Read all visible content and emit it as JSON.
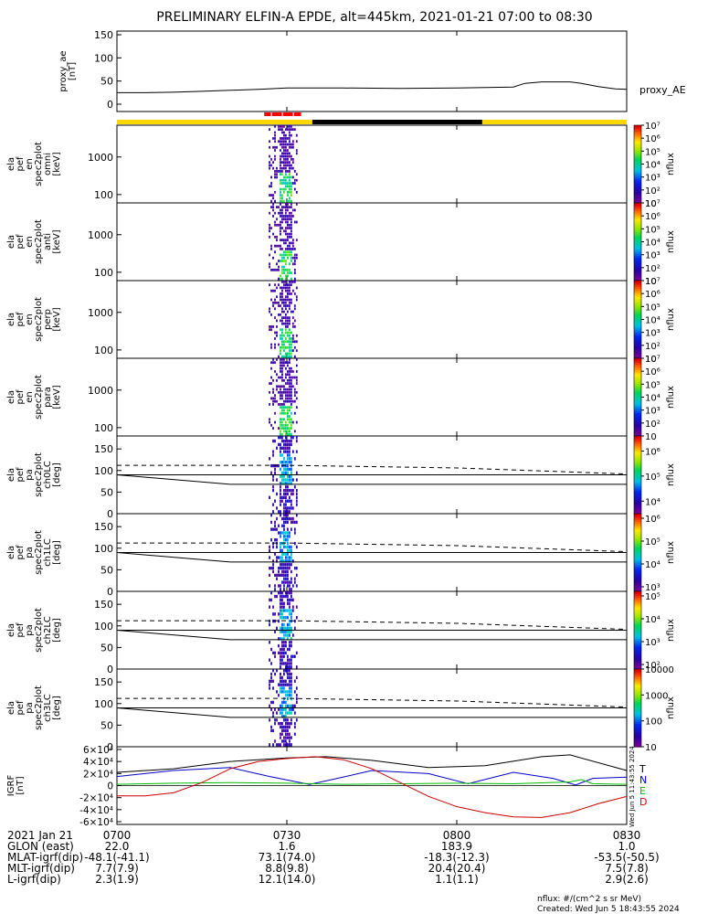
{
  "title": "PRELIMINARY ELFIN-A EPDE, alt=445km, 2021-01-21 07:00 to 08:30",
  "footer": {
    "units": "nflux: #/(cm^2 s sr MeV)",
    "created": "Created: Wed Jun  5 18:43:55 2024",
    "side_stamp": "Wed Jun  5 11:43:55 2024"
  },
  "time_axis": {
    "ticks": [
      "0700",
      "0730",
      "0800",
      "0830"
    ],
    "start": "07:00",
    "end": "08:30"
  },
  "ephemeris": {
    "rows": [
      {
        "label": "2021 Jan 21",
        "values": [
          "0700",
          "0730",
          "0800",
          "0830"
        ]
      },
      {
        "label": "GLON (east)",
        "values": [
          "22.0",
          "1.6",
          "183.9",
          "1.0"
        ]
      },
      {
        "label": "MLAT-igrf(dip)",
        "values": [
          "-48.1(-41.1)",
          "73.1(74.0)",
          "-18.3(-12.3)",
          "-53.5(-50.5)"
        ]
      },
      {
        "label": "MLT-igrf(dip)",
        "values": [
          "7.7(7.9)",
          "8.8(9.8)",
          "20.4(20.4)",
          "7.5(7.8)"
        ]
      },
      {
        "label": "L-igrf(dip)",
        "values": [
          "2.3(1.9)",
          "12.1(14.0)",
          "1.1(1.1)",
          "2.9(2.6)"
        ]
      }
    ]
  },
  "chart_data": [
    {
      "type": "line",
      "name": "proxy_ae",
      "ylabel": [
        "proxy_ae",
        "[nT]"
      ],
      "ylim": [
        0,
        150
      ],
      "yticks": [
        0,
        50,
        100,
        150
      ],
      "legend": "proxy_AE",
      "x": [
        0,
        5,
        10,
        15,
        20,
        25,
        30,
        40,
        50,
        60,
        65,
        70,
        72,
        75,
        80,
        82,
        85,
        88,
        90
      ],
      "y": [
        25,
        25,
        26,
        28,
        30,
        32,
        35,
        35,
        34,
        35,
        36,
        37,
        45,
        48,
        48,
        45,
        38,
        33,
        32
      ]
    },
    {
      "type": "table",
      "name": "status_bar",
      "segments": [
        {
          "start": 0,
          "end": 34.5,
          "color": "#ffd700"
        },
        {
          "start": 34.5,
          "end": 64.5,
          "color": "#000000"
        },
        {
          "start": 64.5,
          "end": 90,
          "color": "#ffd700"
        }
      ],
      "science_zone": [
        26,
        32.5
      ],
      "science_color": "#ff0000"
    },
    {
      "type": "heatmap",
      "name": "ela_pef_en_spec2plot_omni",
      "ylabel": [
        "ela",
        "pef",
        "en",
        "spec2plot",
        "omni",
        "[keV]"
      ],
      "ylog": true,
      "yrange": [
        60,
        7000
      ],
      "yticks": [
        "100",
        "1000"
      ],
      "cbar": {
        "label": "nflux",
        "log": true,
        "min_exp": 1,
        "max_exp": 7,
        "ticks": [
          "10",
          "10²",
          "10³",
          "10⁴",
          "10⁵",
          "10⁶",
          "10⁷"
        ]
      }
    },
    {
      "type": "heatmap",
      "name": "ela_pef_en_spec2plot_anti",
      "ylabel": [
        "ela",
        "pef",
        "en",
        "spec2plot",
        "anti",
        "[keV]"
      ],
      "ylog": true,
      "yrange": [
        60,
        7000
      ],
      "yticks": [
        "100",
        "1000"
      ],
      "cbar": {
        "label": "nflux",
        "log": true,
        "min_exp": 1,
        "max_exp": 7,
        "ticks": [
          "10",
          "10²",
          "10³",
          "10⁴",
          "10⁵",
          "10⁶",
          "10⁷"
        ]
      }
    },
    {
      "type": "heatmap",
      "name": "ela_pef_en_spec2plot_perp",
      "ylabel": [
        "ela",
        "pef",
        "en",
        "spec2plot",
        "perp",
        "[keV]"
      ],
      "ylog": true,
      "yrange": [
        60,
        7000
      ],
      "yticks": [
        "100",
        "1000"
      ],
      "cbar": {
        "label": "nflux",
        "log": true,
        "min_exp": 1,
        "max_exp": 7,
        "ticks": [
          "10",
          "10²",
          "10³",
          "10⁴",
          "10⁵",
          "10⁶",
          "10⁷"
        ]
      }
    },
    {
      "type": "heatmap",
      "name": "ela_pef_en_spec2plot_para",
      "ylabel": [
        "ela",
        "pef",
        "en",
        "spec2plot",
        "para",
        "[keV]"
      ],
      "ylog": true,
      "yrange": [
        60,
        7000
      ],
      "yticks": [
        "100",
        "1000"
      ],
      "cbar": {
        "label": "nflux",
        "log": true,
        "min_exp": 1,
        "max_exp": 7,
        "ticks": [
          "10",
          "10²",
          "10³",
          "10⁴",
          "10⁵",
          "10⁶",
          "10⁷"
        ]
      }
    },
    {
      "type": "heatmap",
      "name": "ela_pef_pa_spec2plot_ch0LC",
      "ylabel": [
        "ela",
        "pef",
        "pa",
        "spec2plot",
        "ch0LC",
        "[deg]"
      ],
      "ylim": [
        0,
        180
      ],
      "yticks": [
        0,
        50,
        100,
        150
      ],
      "cbar": {
        "label": "nflux",
        "log": true,
        "min_exp": 3.5,
        "max_exp": 6.6,
        "ticks": [
          "10⁴",
          "10⁵",
          "10⁶"
        ]
      }
    },
    {
      "type": "heatmap",
      "name": "ela_pef_pa_spec2plot_ch1LC",
      "ylabel": [
        "ela",
        "pef",
        "pa",
        "spec2plot",
        "ch1LC",
        "[deg]"
      ],
      "ylim": [
        0,
        180
      ],
      "yticks": [
        0,
        50,
        100,
        150
      ],
      "cbar": {
        "label": "nflux",
        "log": true,
        "min_exp": 2.8,
        "max_exp": 6.2,
        "ticks": [
          "10³",
          "10⁴",
          "10⁵",
          "10⁶"
        ]
      }
    },
    {
      "type": "heatmap",
      "name": "ela_pef_pa_spec2plot_ch2LC",
      "ylabel": [
        "ela",
        "pef",
        "pa",
        "spec2plot",
        "ch2LC",
        "[deg]"
      ],
      "ylim": [
        0,
        180
      ],
      "yticks": [
        0,
        50,
        100,
        150
      ],
      "cbar": {
        "label": "nflux",
        "log": true,
        "min_exp": 1.8,
        "max_exp": 5.2,
        "ticks": [
          "10²",
          "10³",
          "10⁴",
          "10⁵"
        ]
      }
    },
    {
      "type": "heatmap",
      "name": "ela_pef_pa_spec2plot_ch3LC",
      "ylabel": [
        "ela",
        "pef",
        "pa",
        "spec2plot",
        "ch3LC",
        "[deg]"
      ],
      "ylim": [
        0,
        180
      ],
      "yticks": [
        0,
        50,
        100,
        150
      ],
      "cbar": {
        "label": "nflux",
        "log": false,
        "min_exp": 1,
        "max_exp": 4,
        "ticks": [
          "10",
          "100",
          "1000",
          "10000"
        ]
      }
    },
    {
      "type": "line",
      "name": "IGRF",
      "ylabel": [
        "IGRF",
        "[nT]"
      ],
      "ylim": [
        -60000,
        60000
      ],
      "yticks": [
        "-6×10⁴",
        "-4×10⁴",
        "-2×10⁴",
        "0",
        "2×10⁴",
        "4×10⁴",
        "6×10⁴"
      ],
      "ytick_values": [
        -60000,
        -40000,
        -20000,
        0,
        20000,
        40000,
        60000
      ],
      "series": [
        {
          "name": "T",
          "color": "#000000",
          "x": [
            0,
            10,
            20,
            30,
            37,
            45,
            55,
            65,
            75,
            80,
            90
          ],
          "y": [
            22000,
            28000,
            40000,
            46000,
            48000,
            42000,
            30000,
            33000,
            48000,
            51000,
            25000
          ]
        },
        {
          "name": "N",
          "color": "#0000cc",
          "x": [
            0,
            10,
            20,
            27,
            34,
            38,
            45,
            55,
            62,
            70,
            77,
            81,
            84,
            90
          ],
          "y": [
            15000,
            25000,
            30000,
            15000,
            2000,
            10000,
            25000,
            20000,
            3000,
            22000,
            12000,
            1000,
            12000,
            14000
          ]
        },
        {
          "name": "E",
          "color": "#00bb00",
          "x": [
            0,
            10,
            20,
            30,
            40,
            50,
            60,
            70,
            80,
            82,
            84,
            90
          ],
          "y": [
            2000,
            4000,
            5000,
            4000,
            2000,
            3000,
            4000,
            3000,
            6000,
            10000,
            3000,
            2000
          ]
        },
        {
          "name": "D",
          "color": "#cc0000",
          "x": [
            0,
            5,
            10,
            15,
            20,
            25,
            30,
            35,
            40,
            45,
            50,
            55,
            60,
            65,
            70,
            75,
            80,
            85,
            90
          ],
          "y": [
            -17000,
            -17000,
            -12000,
            5000,
            28000,
            40000,
            45000,
            48000,
            43000,
            28000,
            5000,
            -18000,
            -35000,
            -45000,
            -52000,
            -53000,
            -45000,
            -30000,
            -18000
          ]
        }
      ]
    }
  ]
}
